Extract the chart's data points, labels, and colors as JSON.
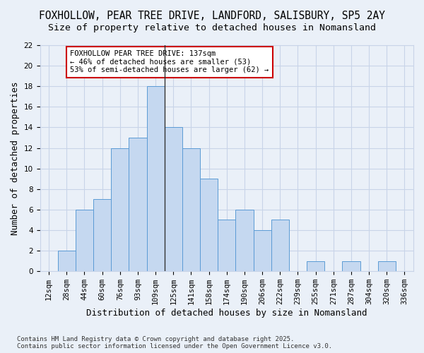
{
  "title_line1": "FOXHOLLOW, PEAR TREE DRIVE, LANDFORD, SALISBURY, SP5 2AY",
  "title_line2": "Size of property relative to detached houses in Nomansland",
  "xlabel": "Distribution of detached houses by size in Nomansland",
  "ylabel": "Number of detached properties",
  "bins": [
    "12sqm",
    "28sqm",
    "44sqm",
    "60sqm",
    "76sqm",
    "93sqm",
    "109sqm",
    "125sqm",
    "141sqm",
    "158sqm",
    "174sqm",
    "190sqm",
    "206sqm",
    "222sqm",
    "239sqm",
    "255sqm",
    "271sqm",
    "287sqm",
    "304sqm",
    "320sqm",
    "336sqm"
  ],
  "values": [
    0,
    2,
    6,
    7,
    12,
    13,
    18,
    14,
    12,
    9,
    5,
    6,
    4,
    5,
    0,
    1,
    0,
    1,
    0,
    1,
    0
  ],
  "bar_color": "#c5d8f0",
  "bar_edge_color": "#5b9bd5",
  "vline_x_index": 7,
  "marker_label_line1": "FOXHOLLOW PEAR TREE DRIVE: 137sqm",
  "marker_label_line2": "← 46% of detached houses are smaller (53)",
  "marker_label_line3": "53% of semi-detached houses are larger (62) →",
  "annotation_box_color": "#ffffff",
  "annotation_border_color": "#cc0000",
  "vline_color": "#333333",
  "ylim": [
    0,
    22
  ],
  "yticks": [
    0,
    2,
    4,
    6,
    8,
    10,
    12,
    14,
    16,
    18,
    20,
    22
  ],
  "grid_color": "#c8d4e8",
  "bg_color": "#eaf0f8",
  "footer": "Contains HM Land Registry data © Crown copyright and database right 2025.\nContains public sector information licensed under the Open Government Licence v3.0.",
  "title_fontsize": 10.5,
  "subtitle_fontsize": 9.5,
  "axis_label_fontsize": 9,
  "tick_fontsize": 7.5,
  "annotation_fontsize": 7.5,
  "footer_fontsize": 6.5
}
